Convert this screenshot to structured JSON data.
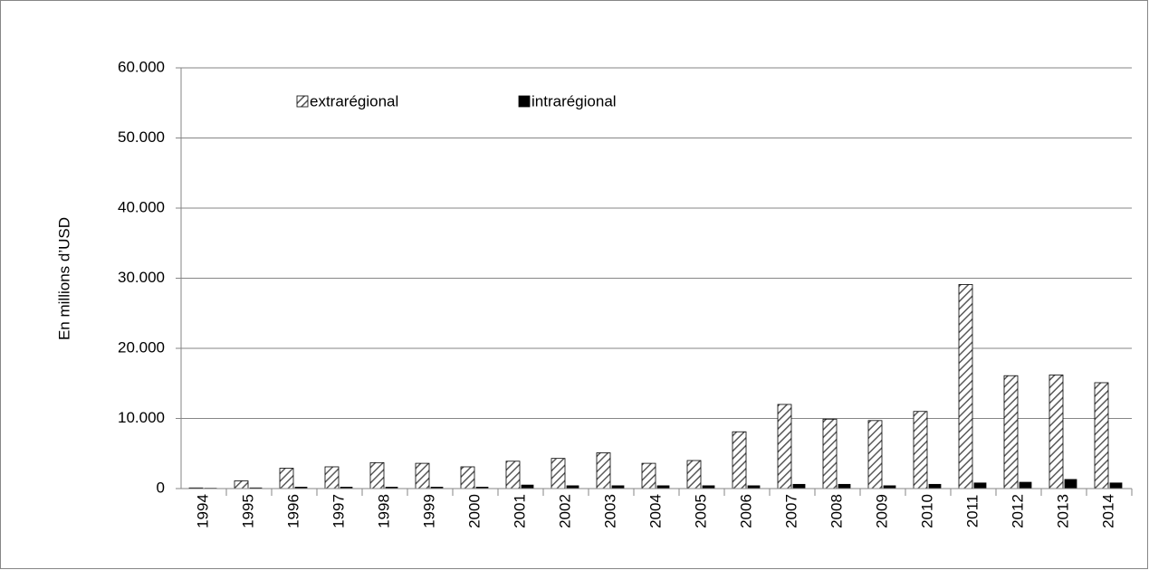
{
  "chart_data": {
    "type": "bar",
    "y_label": "En millions d’USD",
    "categories": [
      "1994",
      "1995",
      "1996",
      "1997",
      "1998",
      "1999",
      "2000",
      "2001",
      "2002",
      "2003",
      "2004",
      "2005",
      "2006",
      "2007",
      "2008",
      "2009",
      "2010",
      "2011",
      "2012",
      "2013",
      "2014"
    ],
    "series": [
      {
        "name": "extrarégional",
        "color": "#595959",
        "pattern": "hatch",
        "values": [
          100,
          1100,
          2900,
          3100,
          3700,
          3600,
          3100,
          3900,
          4300,
          5100,
          3600,
          4000,
          8100,
          12000,
          9900,
          9700,
          11000,
          29100,
          16100,
          16200,
          15100
        ]
      },
      {
        "name": "intrarégional",
        "color": "#000000",
        "pattern": "solid",
        "values": [
          50,
          100,
          200,
          200,
          200,
          200,
          200,
          500,
          400,
          400,
          400,
          400,
          400,
          600,
          600,
          400,
          600,
          800,
          900,
          1300,
          800
        ]
      }
    ],
    "ylim": [
      0,
      60000
    ],
    "yticks": [
      0,
      {
        "value": 10000,
        "label": "10.000"
      },
      {
        "value": 20000,
        "label": "20.000"
      },
      {
        "value": 30000,
        "label": "30.000"
      },
      {
        "value": 40000,
        "label": "40.000"
      },
      {
        "value": 50000,
        "label": "50.000"
      },
      {
        "value": 60000,
        "label": "60.000"
      }
    ],
    "grid": true,
    "legend": "top"
  }
}
